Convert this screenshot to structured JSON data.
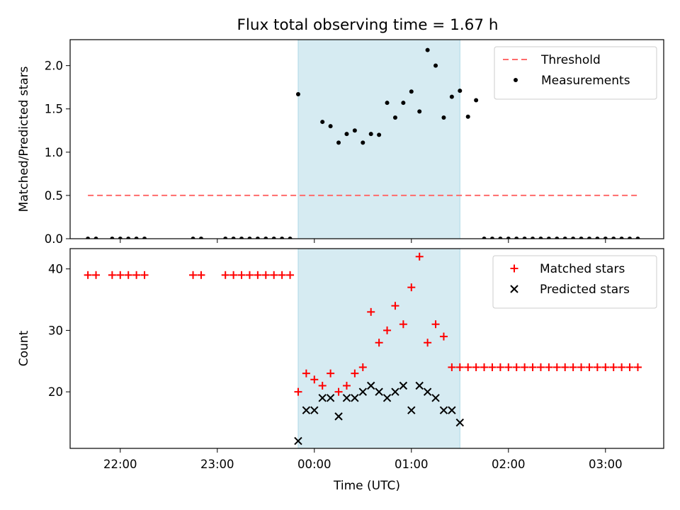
{
  "figure": {
    "title": "Flux total observing time = 1.67 h"
  },
  "chart_data": [
    {
      "type": "scatter",
      "panel": "top",
      "ylabel": "Matched/Predicted stars",
      "ylim": [
        0,
        2.3
      ],
      "yticks": [
        0.0,
        0.5,
        1.0,
        1.5,
        2.0
      ],
      "ytick_labels": [
        "0.0",
        "0.5",
        "1.0",
        "1.5",
        "2.0"
      ],
      "grid": false,
      "legend": "top-right",
      "shaded_interval": {
        "x": [
          "23:50",
          "01:30"
        ],
        "color": "#add8e6"
      },
      "threshold": {
        "name": "Threshold",
        "value": 0.5,
        "x": [
          "21:40",
          "03:20"
        ],
        "color": "#ff6b6b",
        "style": "dashed"
      },
      "series": [
        {
          "name": "Measurements",
          "color": "#000000",
          "marker": "dot",
          "x": [
            "21:40",
            "21:45",
            "21:55",
            "22:00",
            "22:05",
            "22:10",
            "22:15",
            "22:45",
            "22:50",
            "23:05",
            "23:10",
            "23:15",
            "23:20",
            "23:25",
            "23:30",
            "23:35",
            "23:40",
            "23:45",
            "23:50",
            "00:05",
            "00:10",
            "00:15",
            "00:20",
            "00:25",
            "00:30",
            "00:35",
            "00:40",
            "00:45",
            "00:50",
            "00:55",
            "01:00",
            "01:05",
            "01:10",
            "01:15",
            "01:20",
            "01:25",
            "01:30",
            "01:35",
            "01:40",
            "01:45",
            "01:50",
            "01:55",
            "02:00",
            "02:05",
            "02:10",
            "02:15",
            "02:20",
            "02:25",
            "02:30",
            "02:35",
            "02:40",
            "02:45",
            "02:50",
            "02:55",
            "03:00",
            "03:05",
            "03:10",
            "03:15",
            "03:20"
          ],
          "y": [
            0,
            0,
            0,
            0,
            0,
            0,
            0,
            0,
            0,
            0,
            0,
            0,
            0,
            0,
            0,
            0,
            0,
            0,
            1.67,
            1.35,
            1.3,
            1.11,
            1.21,
            1.25,
            1.11,
            1.21,
            1.2,
            1.57,
            1.4,
            1.57,
            1.7,
            1.47,
            2.18,
            2.0,
            1.4,
            1.64,
            1.71,
            1.41,
            1.6,
            0,
            0,
            0,
            0,
            0,
            0,
            0,
            0,
            0,
            0,
            0,
            0,
            0,
            0,
            0,
            0,
            0,
            0,
            0,
            0
          ]
        }
      ]
    },
    {
      "type": "scatter",
      "panel": "bottom",
      "xlabel": "Time (UTC)",
      "ylabel": "Count",
      "ylim": [
        10.8,
        43.3
      ],
      "yticks": [
        20,
        30,
        40
      ],
      "ytick_labels": [
        "20",
        "30",
        "40"
      ],
      "xlim": [
        "21:29",
        "03:36"
      ],
      "xticks": [
        "22:00",
        "23:00",
        "00:00",
        "01:00",
        "02:00",
        "03:00"
      ],
      "xtick_labels": [
        "22:00",
        "23:00",
        "00:00",
        "01:00",
        "02:00",
        "03:00"
      ],
      "grid": false,
      "legend": "top-right",
      "shaded_interval": {
        "x": [
          "23:50",
          "01:30"
        ],
        "color": "#add8e6"
      },
      "series": [
        {
          "name": "Matched stars",
          "color": "#ff0000",
          "marker": "plus",
          "x": [
            "21:40",
            "21:45",
            "21:55",
            "22:00",
            "22:05",
            "22:10",
            "22:15",
            "22:45",
            "22:50",
            "23:05",
            "23:10",
            "23:15",
            "23:20",
            "23:25",
            "23:30",
            "23:35",
            "23:40",
            "23:45",
            "23:50",
            "23:55",
            "00:00",
            "00:05",
            "00:10",
            "00:15",
            "00:20",
            "00:25",
            "00:30",
            "00:35",
            "00:40",
            "00:45",
            "00:50",
            "00:55",
            "01:00",
            "01:05",
            "01:10",
            "01:15",
            "01:20",
            "01:25",
            "01:30",
            "01:35",
            "01:40",
            "01:45",
            "01:50",
            "01:55",
            "02:00",
            "02:05",
            "02:10",
            "02:15",
            "02:20",
            "02:25",
            "02:30",
            "02:35",
            "02:40",
            "02:45",
            "02:50",
            "02:55",
            "03:00",
            "03:05",
            "03:10",
            "03:15",
            "03:20"
          ],
          "y": [
            39,
            39,
            39,
            39,
            39,
            39,
            39,
            39,
            39,
            39,
            39,
            39,
            39,
            39,
            39,
            39,
            39,
            39,
            20,
            23,
            22,
            21,
            23,
            20,
            21,
            23,
            24,
            33,
            28,
            30,
            34,
            31,
            37,
            42,
            28,
            31,
            29,
            24,
            24,
            24,
            24,
            24,
            24,
            24,
            24,
            24,
            24,
            24,
            24,
            24,
            24,
            24,
            24,
            24,
            24,
            24,
            24,
            24,
            24,
            24,
            24
          ]
        },
        {
          "name": "Predicted stars",
          "color": "#000000",
          "marker": "x",
          "x": [
            "23:50",
            "23:55",
            "00:00",
            "00:05",
            "00:10",
            "00:15",
            "00:20",
            "00:25",
            "00:30",
            "00:35",
            "00:40",
            "00:45",
            "00:50",
            "00:55",
            "01:00",
            "01:05",
            "01:10",
            "01:15",
            "01:20",
            "01:25",
            "01:30"
          ],
          "y": [
            12,
            17,
            17,
            19,
            19,
            16,
            19,
            19,
            20,
            21,
            20,
            19,
            20,
            21,
            17,
            21,
            20,
            19,
            17,
            17,
            15
          ]
        }
      ]
    }
  ]
}
